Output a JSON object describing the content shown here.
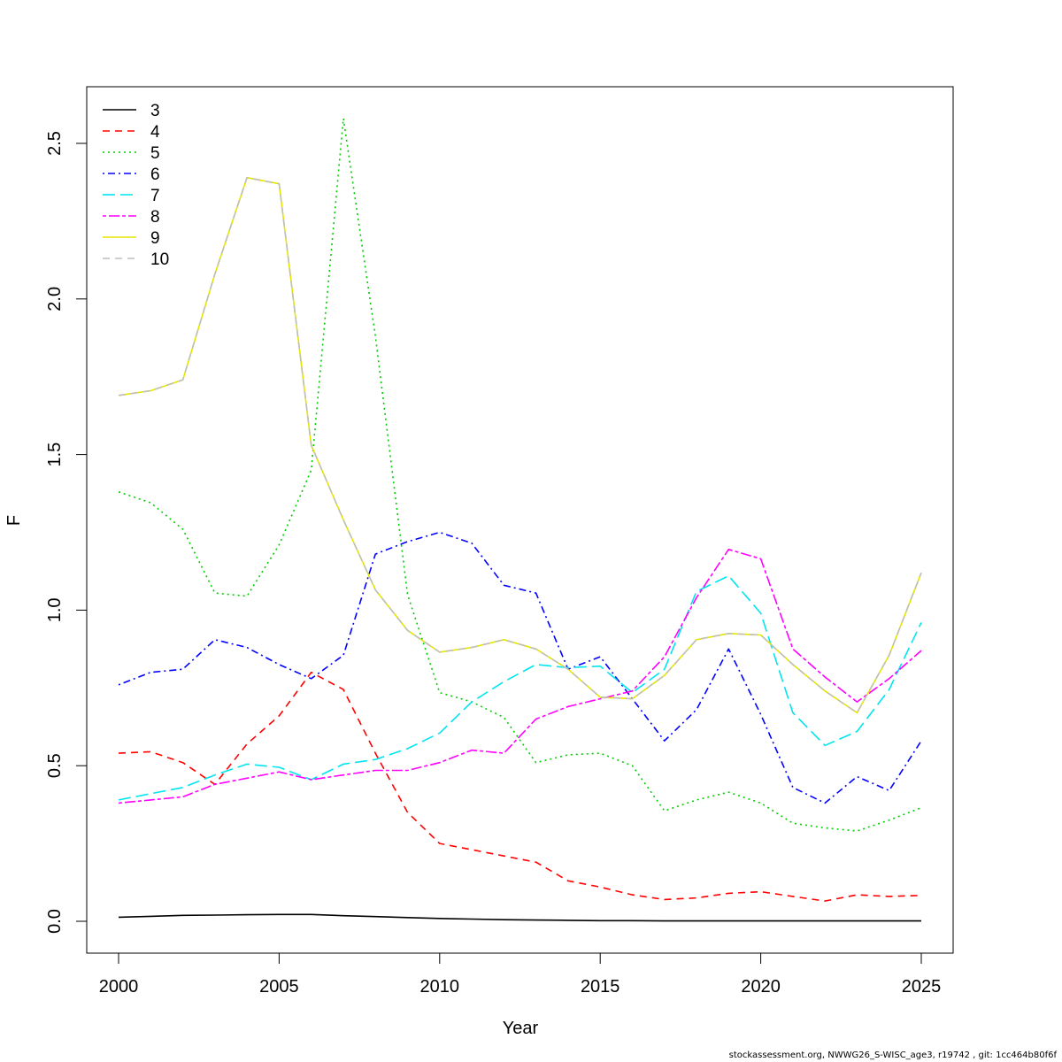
{
  "footer": "stockassessment.org, NWWG26_S-WISC_age3, r19742 , git: 1cc464b80f6f",
  "chart_data": {
    "type": "line",
    "title": "",
    "xlabel": "Year",
    "ylabel": "F",
    "xlim": [
      2000,
      2025
    ],
    "ylim": [
      0,
      2.6
    ],
    "x_ticks": [
      2000,
      2005,
      2010,
      2015,
      2020,
      2025
    ],
    "y_ticks": [
      0.0,
      0.5,
      1.0,
      1.5,
      2.0,
      2.5
    ],
    "y_tick_labels": [
      "0.0",
      "0.5",
      "1.0",
      "1.5",
      "2.0",
      "2.5"
    ],
    "grid": false,
    "legend_position": "top-left",
    "x": [
      2000,
      2001,
      2002,
      2003,
      2004,
      2005,
      2006,
      2007,
      2008,
      2009,
      2010,
      2011,
      2012,
      2013,
      2014,
      2015,
      2016,
      2017,
      2018,
      2019,
      2020,
      2021,
      2022,
      2023,
      2024,
      2025
    ],
    "series": [
      {
        "name": "3",
        "color": "#000000",
        "dash": "solid",
        "values": [
          0.013,
          0.016,
          0.019,
          0.02,
          0.021,
          0.022,
          0.022,
          0.018,
          0.015,
          0.012,
          0.009,
          0.007,
          0.005,
          0.004,
          0.003,
          0.002,
          0.002,
          0.001,
          0.001,
          0.001,
          0.001,
          0.001,
          0.001,
          0.001,
          0.001,
          0.001
        ]
      },
      {
        "name": "4",
        "color": "#ff0000",
        "dash": "dashed",
        "values": [
          0.54,
          0.545,
          0.51,
          0.44,
          0.57,
          0.66,
          0.8,
          0.745,
          0.54,
          0.35,
          0.25,
          0.23,
          0.21,
          0.19,
          0.13,
          0.11,
          0.085,
          0.07,
          0.075,
          0.09,
          0.095,
          0.08,
          0.065,
          0.085,
          0.08,
          0.083
        ]
      },
      {
        "name": "5",
        "color": "#00cd00",
        "dash": "dotted",
        "values": [
          1.38,
          1.345,
          1.26,
          1.055,
          1.045,
          1.21,
          1.45,
          2.58,
          1.88,
          1.05,
          0.735,
          0.705,
          0.655,
          0.51,
          0.535,
          0.54,
          0.5,
          0.355,
          0.39,
          0.415,
          0.38,
          0.315,
          0.3,
          0.29,
          0.325,
          0.365
        ]
      },
      {
        "name": "6",
        "color": "#0000ff",
        "dash": "dotdash",
        "values": [
          0.76,
          0.8,
          0.81,
          0.905,
          0.88,
          0.825,
          0.78,
          0.855,
          1.18,
          1.22,
          1.25,
          1.215,
          1.08,
          1.055,
          0.81,
          0.85,
          0.715,
          0.58,
          0.68,
          0.875,
          0.665,
          0.43,
          0.38,
          0.465,
          0.42,
          0.58
        ]
      },
      {
        "name": "7",
        "color": "#00e5ee",
        "dash": "longdash",
        "values": [
          0.39,
          0.41,
          0.43,
          0.47,
          0.505,
          0.495,
          0.455,
          0.505,
          0.52,
          0.555,
          0.605,
          0.705,
          0.77,
          0.825,
          0.815,
          0.82,
          0.735,
          0.81,
          1.06,
          1.11,
          0.99,
          0.67,
          0.565,
          0.61,
          0.745,
          0.96
        ]
      },
      {
        "name": "8",
        "color": "#ff00ff",
        "dash": "twodash",
        "values": [
          0.38,
          0.39,
          0.4,
          0.44,
          0.46,
          0.48,
          0.455,
          0.47,
          0.485,
          0.485,
          0.51,
          0.55,
          0.54,
          0.65,
          0.69,
          0.715,
          0.74,
          0.85,
          1.04,
          1.195,
          1.165,
          0.875,
          0.785,
          0.705,
          0.78,
          0.87
        ]
      },
      {
        "name": "9",
        "color": "#e5e500",
        "dash": "solid",
        "values": [
          1.69,
          1.705,
          1.74,
          2.08,
          2.39,
          2.37,
          1.53,
          1.29,
          1.065,
          0.935,
          0.865,
          0.88,
          0.905,
          0.875,
          0.81,
          0.72,
          0.715,
          0.79,
          0.905,
          0.925,
          0.92,
          0.825,
          0.74,
          0.67,
          0.855,
          1.12
        ]
      },
      {
        "name": "10",
        "color": "#bebebe",
        "dash": "dashed",
        "values": [
          1.69,
          1.705,
          1.74,
          2.08,
          2.39,
          2.37,
          1.53,
          1.29,
          1.065,
          0.935,
          0.865,
          0.88,
          0.905,
          0.875,
          0.81,
          0.72,
          0.715,
          0.79,
          0.905,
          0.925,
          0.92,
          0.825,
          0.74,
          0.67,
          0.855,
          1.12
        ]
      }
    ]
  }
}
